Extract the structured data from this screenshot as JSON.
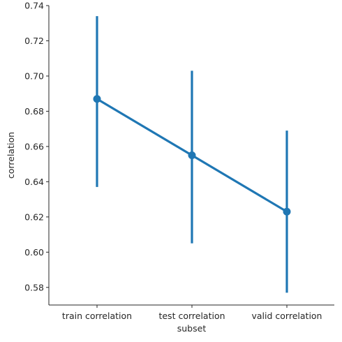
{
  "chart_data": {
    "type": "point",
    "title": "",
    "xlabel": "subset",
    "ylabel": "correlation",
    "categories": [
      "train correlation",
      "test correlation",
      "valid correlation"
    ],
    "values": [
      0.687,
      0.655,
      0.623
    ],
    "ci_low": [
      0.637,
      0.605,
      0.577
    ],
    "ci_high": [
      0.734,
      0.703,
      0.669
    ],
    "ylim": [
      0.57,
      0.74
    ],
    "yticks": [
      0.58,
      0.6,
      0.62,
      0.64,
      0.66,
      0.68,
      0.7,
      0.72,
      0.74
    ],
    "ytick_labels": [
      "0.58",
      "0.60",
      "0.62",
      "0.64",
      "0.66",
      "0.68",
      "0.70",
      "0.72",
      "0.74"
    ],
    "grid": false,
    "color": "#1f77b4"
  }
}
